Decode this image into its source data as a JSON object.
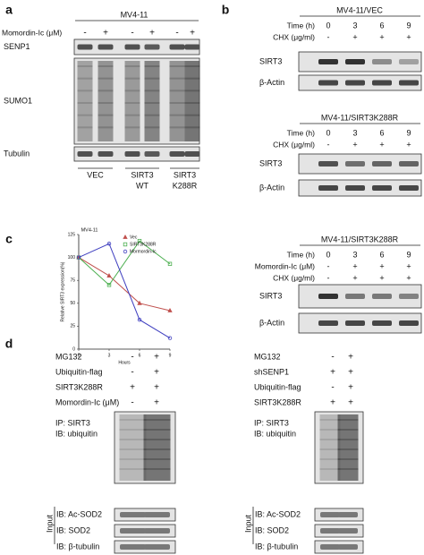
{
  "panel_a": {
    "letter": "a",
    "cell_line": "MV4-11",
    "treatment_label": "Momordin-Ic (μM)",
    "signs": [
      "-",
      "+",
      "-",
      "+",
      "-",
      "+"
    ],
    "blots": [
      "SENP1",
      "SUMO1",
      "Tubulin"
    ],
    "groups": [
      [
        "VEC"
      ],
      [
        "SIRT3",
        "WT"
      ],
      [
        "SIRT3",
        "K288R"
      ]
    ]
  },
  "panel_b": {
    "letter": "b",
    "blots": [
      {
        "title": "MV4-11/VEC",
        "time_label": "Time (h)",
        "times": [
          "0",
          "3",
          "6",
          "9"
        ],
        "chx_label": "CHX (μg/ml)",
        "chx": [
          "-",
          "+",
          "+",
          "+"
        ],
        "rows": [
          "SIRT3",
          "β-Actin"
        ]
      },
      {
        "title": "MV4-11/SIRT3K288R",
        "time_label": "Time (h)",
        "times": [
          "0",
          "3",
          "6",
          "9"
        ],
        "chx_label": "CHX (μg/ml)",
        "chx": [
          "-",
          "+",
          "+",
          "+"
        ],
        "rows": [
          "SIRT3",
          "β-Actin"
        ]
      },
      {
        "title": "MV4-11/SIRT3K288R",
        "time_label": "Time (h)",
        "times": [
          "0",
          "3",
          "6",
          "9"
        ],
        "momordin_label": "Momordin-Ic (μM)",
        "momordin": [
          "-",
          "+",
          "+",
          "+"
        ],
        "chx_label": "CHX (μg/ml)",
        "chx": [
          "-",
          "+",
          "+",
          "+"
        ],
        "rows": [
          "SIRT3",
          "β-Actin"
        ]
      }
    ]
  },
  "panel_c": {
    "letter": "c",
    "type": "line",
    "title": "MV4-11",
    "y_label": "Relative SIRT3 expression(%)",
    "x_label": "Hours",
    "x": [
      0,
      3,
      6,
      9
    ],
    "xlim": [
      0,
      9
    ],
    "xticks": [
      0,
      3,
      6,
      9
    ],
    "ylim": [
      0,
      125
    ],
    "yticks": [
      0,
      25,
      50,
      75,
      100,
      125
    ],
    "series": [
      {
        "name": "Vec",
        "color": "#c0504d",
        "marker": "triangle",
        "values": [
          100,
          80,
          50,
          42
        ]
      },
      {
        "name": "SIRT3K288R",
        "color": "#4caf50",
        "marker": "square",
        "values": [
          100,
          70,
          118,
          93
        ]
      },
      {
        "name": "Mormordin-Ic",
        "color": "#4040c0",
        "marker": "circle",
        "values": [
          100,
          115,
          32,
          12
        ]
      }
    ]
  },
  "panel_d": {
    "letter": "d",
    "left": {
      "rows": [
        "MG132",
        "Ubiquitin-flag",
        "SIRT3K288R",
        "Momordin-Ic (μM)"
      ],
      "signs": [
        [
          "-",
          "+"
        ],
        [
          "-",
          "+"
        ],
        [
          "+",
          "+"
        ],
        [
          "-",
          "+"
        ]
      ],
      "ip": [
        "IP: SIRT3",
        "IB: ubiquitin"
      ],
      "input_label": "Input",
      "input_rows": [
        "IB: Ac-SOD2",
        "IB: SOD2",
        "IB: β-tubulin"
      ]
    },
    "right": {
      "rows": [
        "MG132",
        "shSENP1",
        "Ubiquitin-flag",
        "SIRT3K288R"
      ],
      "signs": [
        [
          "-",
          "+"
        ],
        [
          "+",
          "+"
        ],
        [
          "-",
          "+"
        ],
        [
          "+",
          "+"
        ]
      ],
      "ip": [
        "IP: SIRT3",
        "IB: ubiquitin"
      ],
      "input_label": "Input",
      "input_rows": [
        "IB: Ac-SOD2",
        "IB: SOD2",
        "IB: β-tubulin"
      ]
    }
  }
}
